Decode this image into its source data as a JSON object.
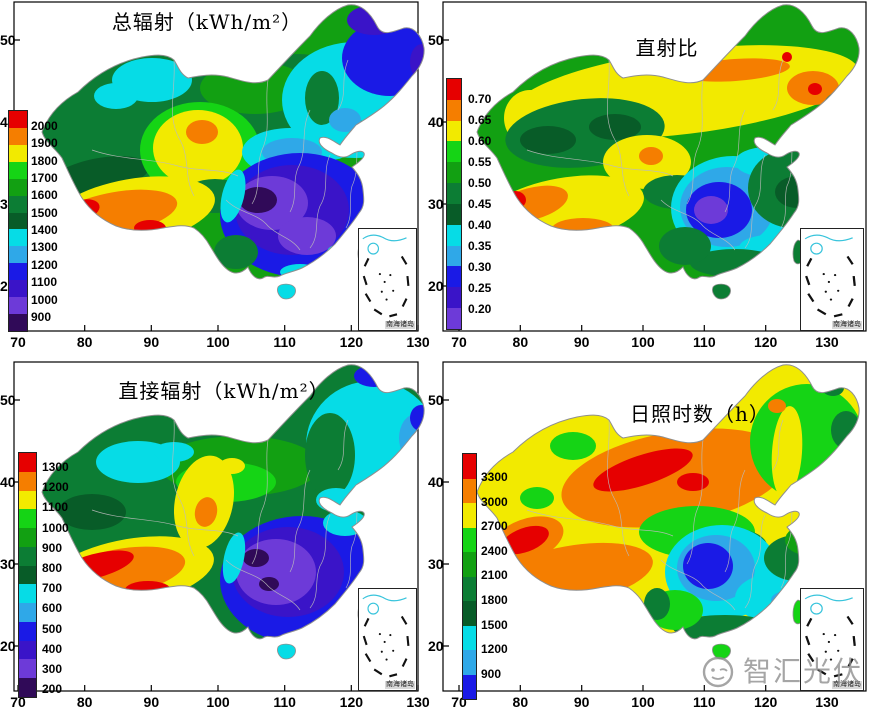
{
  "colors": {
    "red": "#e60000",
    "orange": "#f57e00",
    "yellow": "#f2ea00",
    "green_bright": "#15d415",
    "green": "#12a012",
    "green_dark": "#0c7d34",
    "green_dark2": "#085c28",
    "cyan": "#06dce6",
    "blue_light": "#2fa8e8",
    "blue": "#1a1ae6",
    "indigo": "#3a14c8",
    "violet": "#6d3ad8",
    "purple_darkest": "#300a58",
    "prov": "#bcbcbc",
    "outline": "#8f8f8f",
    "watermark": "#8f8f8f"
  },
  "panels": [
    {
      "id": "total-radiation",
      "title": "总辐射（kWh/m²）",
      "x_ticks": [
        "70",
        "80",
        "90",
        "100",
        "110",
        "120",
        "130"
      ],
      "y_ticks": [
        "50",
        "40",
        "30",
        "20"
      ],
      "colorbar": {
        "labels": [
          "2000",
          "1900",
          "1800",
          "1700",
          "1600",
          "1500",
          "1400",
          "1300",
          "1200",
          "1100",
          "1000",
          "900"
        ],
        "seg_colors": [
          "red",
          "orange",
          "yellow",
          "green_bright",
          "green",
          "green_dark",
          "green_dark2",
          "cyan",
          "blue_light",
          "blue",
          "indigo",
          "violet",
          "purple_darkest"
        ]
      },
      "inset_label": "南海诸岛"
    },
    {
      "id": "direct-ratio",
      "title": "直射比",
      "x_ticks": [
        "70",
        "80",
        "90",
        "100",
        "110",
        "120",
        "130"
      ],
      "y_ticks": [
        "50",
        "40",
        "30",
        "20"
      ],
      "colorbar": {
        "labels": [
          "0.70",
          "0.65",
          "0.60",
          "0.55",
          "0.50",
          "0.45",
          "0.40",
          "0.35",
          "0.30",
          "0.25",
          "0.20"
        ],
        "seg_colors": [
          "red",
          "orange",
          "yellow",
          "green_bright",
          "green",
          "green_dark",
          "green_dark2",
          "cyan",
          "blue_light",
          "blue",
          "indigo",
          "violet"
        ]
      },
      "inset_label": "南海诸岛"
    },
    {
      "id": "direct-radiation",
      "title": "直接辐射（kWh/m²）",
      "x_ticks": [
        "70",
        "80",
        "90",
        "100",
        "110",
        "120",
        "130"
      ],
      "y_ticks": [
        "50",
        "40",
        "30",
        "20"
      ],
      "colorbar": {
        "labels": [
          "1300",
          "1200",
          "1100",
          "1000",
          "900",
          "800",
          "700",
          "600",
          "500",
          "400",
          "300",
          "200"
        ],
        "seg_colors": [
          "red",
          "orange",
          "yellow",
          "green_bright",
          "green",
          "green_dark",
          "green_dark2",
          "cyan",
          "blue_light",
          "blue",
          "indigo",
          "violet",
          "purple_darkest"
        ]
      },
      "inset_label": "南海诸岛"
    },
    {
      "id": "sunshine-hours",
      "title": "日照时数（h）",
      "x_ticks": [
        "70",
        "80",
        "90",
        "100",
        "110",
        "120",
        "130"
      ],
      "y_ticks": [
        "50",
        "40",
        "30",
        "20"
      ],
      "colorbar": {
        "labels": [
          "3300",
          "3000",
          "2700",
          "2400",
          "2100",
          "1800",
          "1500",
          "1200",
          "900"
        ],
        "seg_colors": [
          "red",
          "orange",
          "yellow",
          "green_bright",
          "green",
          "green_dark",
          "green_dark2",
          "cyan",
          "blue_light",
          "blue"
        ]
      },
      "inset_label": "南海诸岛"
    }
  ],
  "watermark": {
    "text": "智汇光伏"
  },
  "chart_data": [
    {
      "type": "heatmap",
      "title": "总辐射（kWh/m²）",
      "x_ticks": [
        70,
        80,
        90,
        100,
        110,
        120,
        130
      ],
      "y_ticks": [
        20,
        30,
        40,
        50
      ],
      "legend_levels_top_to_bottom": [
        2000,
        1900,
        1800,
        1700,
        1600,
        1500,
        1400,
        1300,
        1200,
        1100,
        1000,
        900
      ],
      "legend_colors_top_to_bottom": [
        "#e60000",
        "#f57e00",
        "#f2ea00",
        "#15d415",
        "#12a012",
        "#0c7d34",
        "#085c28",
        "#06dce6",
        "#2fa8e8",
        "#1a1ae6",
        "#3a14c8",
        "#6d3ad8",
        "#300a58"
      ],
      "notes": "Maxima (red/orange, >=1900) over western Tibet; yellow core in central-west; cyan/green across Xinjiang and north; minima (blue/violet/dark purple, <=1100) over Sichuan Basin and southern China; blue/purple in far northeast."
    },
    {
      "type": "heatmap",
      "title": "直射比",
      "x_ticks": [
        70,
        80,
        90,
        100,
        110,
        120,
        130
      ],
      "y_ticks": [
        20,
        30,
        40,
        50
      ],
      "legend_levels_top_to_bottom": [
        0.7,
        0.65,
        0.6,
        0.55,
        0.5,
        0.45,
        0.4,
        0.35,
        0.3,
        0.25,
        0.2
      ],
      "legend_colors_top_to_bottom": [
        "#e60000",
        "#f57e00",
        "#f2ea00",
        "#15d415",
        "#12a012",
        "#0c7d34",
        "#085c28",
        "#06dce6",
        "#2fa8e8",
        "#1a1ae6",
        "#3a14c8",
        "#6d3ad8"
      ],
      "notes": "High ratio (yellow/orange, >=0.60) along the northern band and western Tibet with red spots (>=0.70); dark green east; minima (blue/violet, <=0.30) centered on the Sichuan Basin."
    },
    {
      "type": "heatmap",
      "title": "直接辐射（kWh/m²）",
      "x_ticks": [
        70,
        80,
        90,
        100,
        110,
        120,
        130
      ],
      "y_ticks": [
        20,
        30,
        40,
        50
      ],
      "legend_levels_top_to_bottom": [
        1300,
        1200,
        1100,
        1000,
        900,
        800,
        700,
        600,
        500,
        400,
        300,
        200
      ],
      "legend_colors_top_to_bottom": [
        "#e60000",
        "#f57e00",
        "#f2ea00",
        "#15d415",
        "#12a012",
        "#0c7d34",
        "#085c28",
        "#06dce6",
        "#2fa8e8",
        "#1a1ae6",
        "#3a14c8",
        "#6d3ad8",
        "#300a58"
      ],
      "notes": "Red/orange maxima (>=1100) along western Tibet; yellow/orange core in central-west; dark green over Xinjiang; cyan/blue northeast; minima (violet/dark purple, <=400) in Sichuan Basin with blue across the south and east."
    },
    {
      "type": "heatmap",
      "title": "日照时数（h）",
      "x_ticks": [
        70,
        80,
        90,
        100,
        110,
        120,
        130
      ],
      "y_ticks": [
        20,
        30,
        40,
        50
      ],
      "legend_levels_top_to_bottom": [
        3300,
        3000,
        2700,
        2400,
        2100,
        1800,
        1500,
        1200,
        900
      ],
      "legend_colors_top_to_bottom": [
        "#e60000",
        "#f57e00",
        "#f2ea00",
        "#15d415",
        "#12a012",
        "#0c7d34",
        "#085c28",
        "#06dce6",
        "#2fa8e8",
        "#1a1ae6"
      ],
      "notes": "Orange/red (>=3000) across the northwest-to-north band and Tibet; yellow over Xinjiang; green/dark green northeast and south; minima (blue, <=1200) over the Sichuan Basin with cyan across the southeast."
    }
  ]
}
